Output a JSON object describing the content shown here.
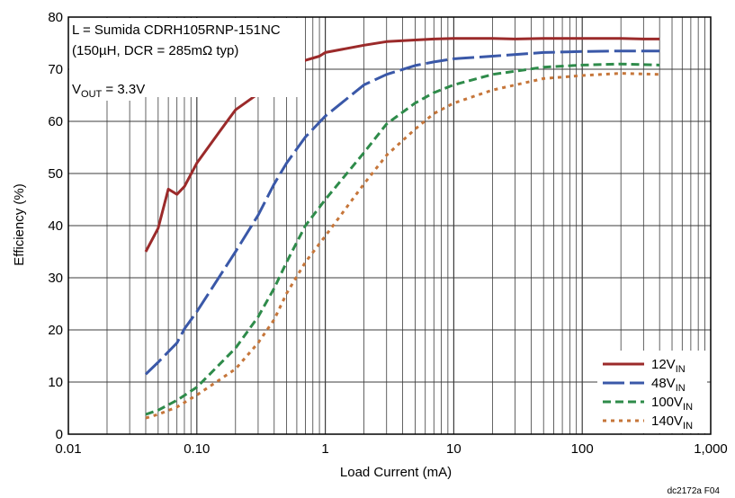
{
  "chart_data": {
    "type": "line",
    "xscale": "log",
    "xlim": [
      0.01,
      1000
    ],
    "ylim": [
      0,
      80
    ],
    "xlabel": "Load Current (mA)",
    "ylabel": "Efficiency (%)",
    "grid": true,
    "legend_position": "bottom-right",
    "x_ticks": [
      {
        "value": 0.01,
        "label": "0.01"
      },
      {
        "value": 0.1,
        "label": "0.10"
      },
      {
        "value": 1,
        "label": "1"
      },
      {
        "value": 10,
        "label": "10"
      },
      {
        "value": 100,
        "label": "100"
      },
      {
        "value": 1000,
        "label": "1,000"
      }
    ],
    "y_ticks": [
      0,
      10,
      20,
      30,
      40,
      50,
      60,
      70,
      80
    ],
    "annotations": {
      "line1": "L = Sumida CDRH105RNP-151NC",
      "line2": "(150µH, DCR = 285mΩ typ)",
      "vout_main": "V",
      "vout_sub": "OUT",
      "vout_rest": " = 3.3V"
    },
    "ref_code": "dc2172a F04",
    "series": [
      {
        "name_main": "12V",
        "name_sub": "IN",
        "color": "#9b2a2a",
        "dash": "",
        "width": 3,
        "points": [
          [
            0.04,
            35
          ],
          [
            0.05,
            39.5
          ],
          [
            0.06,
            47
          ],
          [
            0.07,
            46
          ],
          [
            0.08,
            47.5
          ],
          [
            0.1,
            52
          ],
          [
            0.15,
            58
          ],
          [
            0.2,
            62.2
          ],
          [
            0.3,
            65.3
          ],
          [
            0.4,
            68.2
          ],
          [
            0.5,
            69.6
          ],
          [
            0.7,
            71.7
          ],
          [
            0.9,
            72.5
          ],
          [
            1,
            73.2
          ],
          [
            2,
            74.6
          ],
          [
            3,
            75.3
          ],
          [
            5,
            75.6
          ],
          [
            7,
            75.8
          ],
          [
            10,
            75.9
          ],
          [
            20,
            75.9
          ],
          [
            30,
            75.8
          ],
          [
            50,
            75.9
          ],
          [
            100,
            75.9
          ],
          [
            200,
            75.9
          ],
          [
            300,
            75.8
          ],
          [
            400,
            75.8
          ]
        ]
      },
      {
        "name_main": "48V",
        "name_sub": "IN",
        "color": "#3a58a8",
        "dash": "24 6",
        "width": 3,
        "points": [
          [
            0.04,
            11.5
          ],
          [
            0.05,
            13.8
          ],
          [
            0.07,
            17.5
          ],
          [
            0.08,
            20.2
          ],
          [
            0.1,
            23.5
          ],
          [
            0.2,
            35
          ],
          [
            0.3,
            42
          ],
          [
            0.4,
            48
          ],
          [
            0.5,
            52
          ],
          [
            0.7,
            57
          ],
          [
            1,
            61
          ],
          [
            2,
            67
          ],
          [
            3,
            69
          ],
          [
            5,
            70.7
          ],
          [
            7,
            71.4
          ],
          [
            10,
            72
          ],
          [
            20,
            72.5
          ],
          [
            50,
            73.2
          ],
          [
            100,
            73.4
          ],
          [
            200,
            73.5
          ],
          [
            400,
            73.5
          ]
        ]
      },
      {
        "name_main": "100V",
        "name_sub": "IN",
        "color": "#2e8b4a",
        "dash": "9 5",
        "width": 3,
        "points": [
          [
            0.04,
            3.8
          ],
          [
            0.05,
            4.6
          ],
          [
            0.07,
            6.5
          ],
          [
            0.1,
            9
          ],
          [
            0.2,
            16.5
          ],
          [
            0.3,
            22.5
          ],
          [
            0.4,
            28
          ],
          [
            0.5,
            33
          ],
          [
            0.7,
            40
          ],
          [
            1,
            45
          ],
          [
            2,
            54
          ],
          [
            3,
            59.5
          ],
          [
            5,
            63.5
          ],
          [
            7,
            65.5
          ],
          [
            10,
            67
          ],
          [
            20,
            69
          ],
          [
            50,
            70.4
          ],
          [
            100,
            70.8
          ],
          [
            200,
            71
          ],
          [
            400,
            70.8
          ]
        ]
      },
      {
        "name_main": "140V",
        "name_sub": "IN",
        "color": "#c6763a",
        "dash": "4 5",
        "width": 3,
        "points": [
          [
            0.04,
            3.1
          ],
          [
            0.05,
            3.8
          ],
          [
            0.07,
            5.2
          ],
          [
            0.1,
            7.5
          ],
          [
            0.2,
            12.5
          ],
          [
            0.3,
            17.5
          ],
          [
            0.4,
            22
          ],
          [
            0.5,
            27
          ],
          [
            0.7,
            33
          ],
          [
            1,
            38
          ],
          [
            2,
            48
          ],
          [
            3,
            53.5
          ],
          [
            5,
            58.5
          ],
          [
            7,
            61.5
          ],
          [
            10,
            63.5
          ],
          [
            20,
            66
          ],
          [
            50,
            68.2
          ],
          [
            100,
            68.8
          ],
          [
            200,
            69.2
          ],
          [
            400,
            69
          ]
        ]
      }
    ]
  }
}
